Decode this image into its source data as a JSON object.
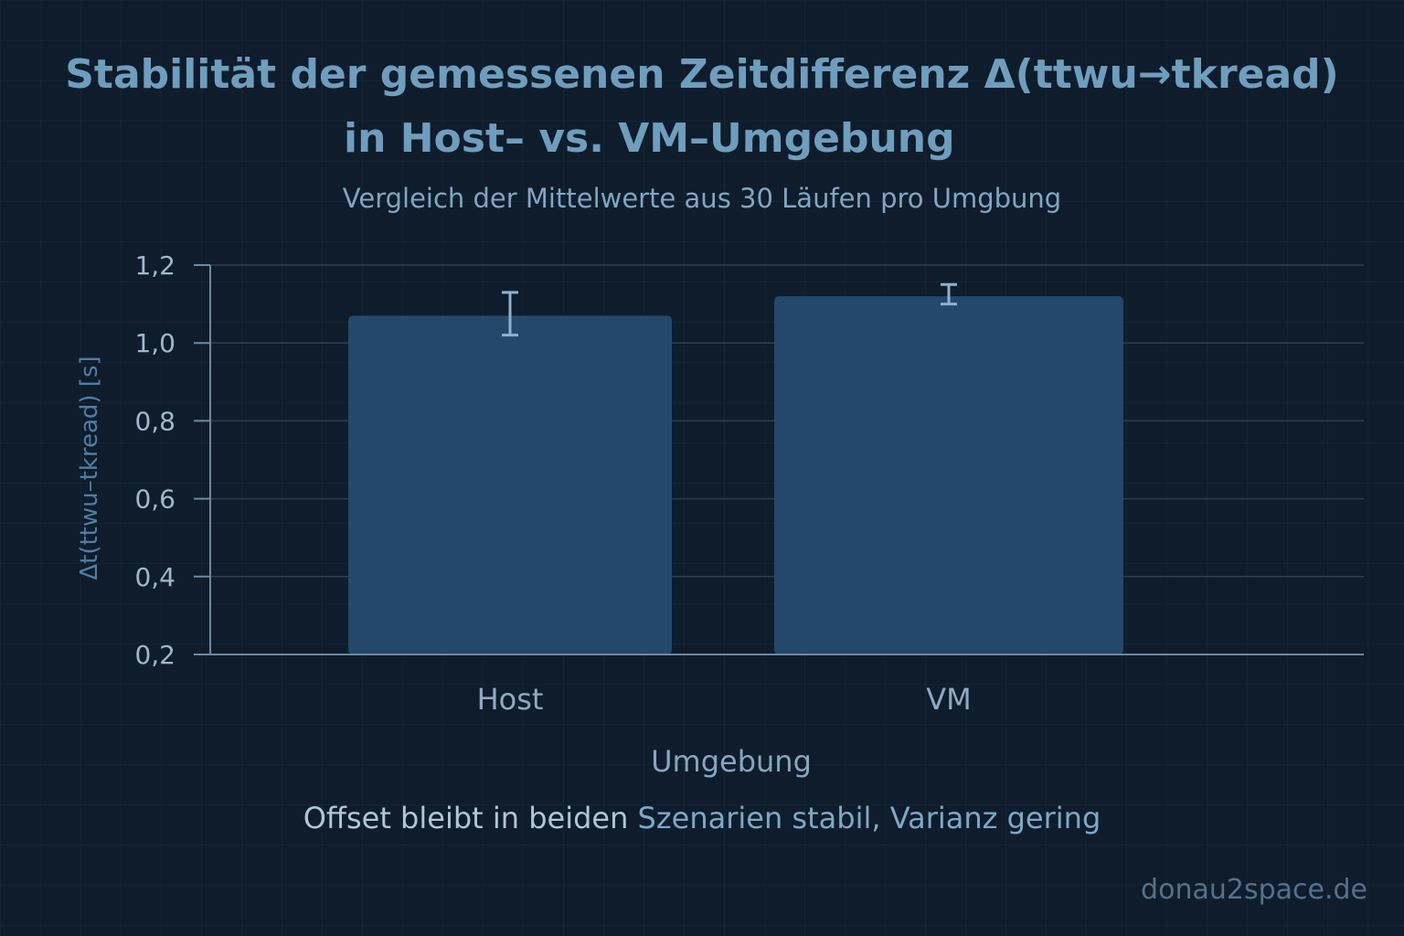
{
  "chart_data": {
    "type": "bar",
    "title_line1": "Stabilität der gemessenen Zeitdifferenz Δ(ttwu→tkread)",
    "title_line2": "in Host– vs. VM–Umgebung",
    "subtitle": "Vergleich der Mittelwerte aus 30 Läufen pro Umgbung",
    "xlabel": "Umgebung",
    "ylabel": "Δt(ttwu–tkread) [s]",
    "categories": [
      "Host",
      "VM"
    ],
    "values": [
      1.07,
      1.12
    ],
    "error_low": [
      1.02,
      1.1
    ],
    "error_high": [
      1.13,
      1.15
    ],
    "ylim": [
      0.2,
      1.2
    ],
    "yticks": [
      0.2,
      0.4,
      0.6,
      0.8,
      1.0,
      1.2
    ],
    "ytick_labels": [
      "0,2",
      "0,4",
      "0,6",
      "0,8",
      "1,0",
      "1,2"
    ],
    "grid": true,
    "bar_color": "#23486b",
    "footnote_part1": "Offset bleibt in beiden",
    "footnote_part2": "Szenarien stabil, Varianz gering"
  },
  "watermark": "donau2space.de"
}
